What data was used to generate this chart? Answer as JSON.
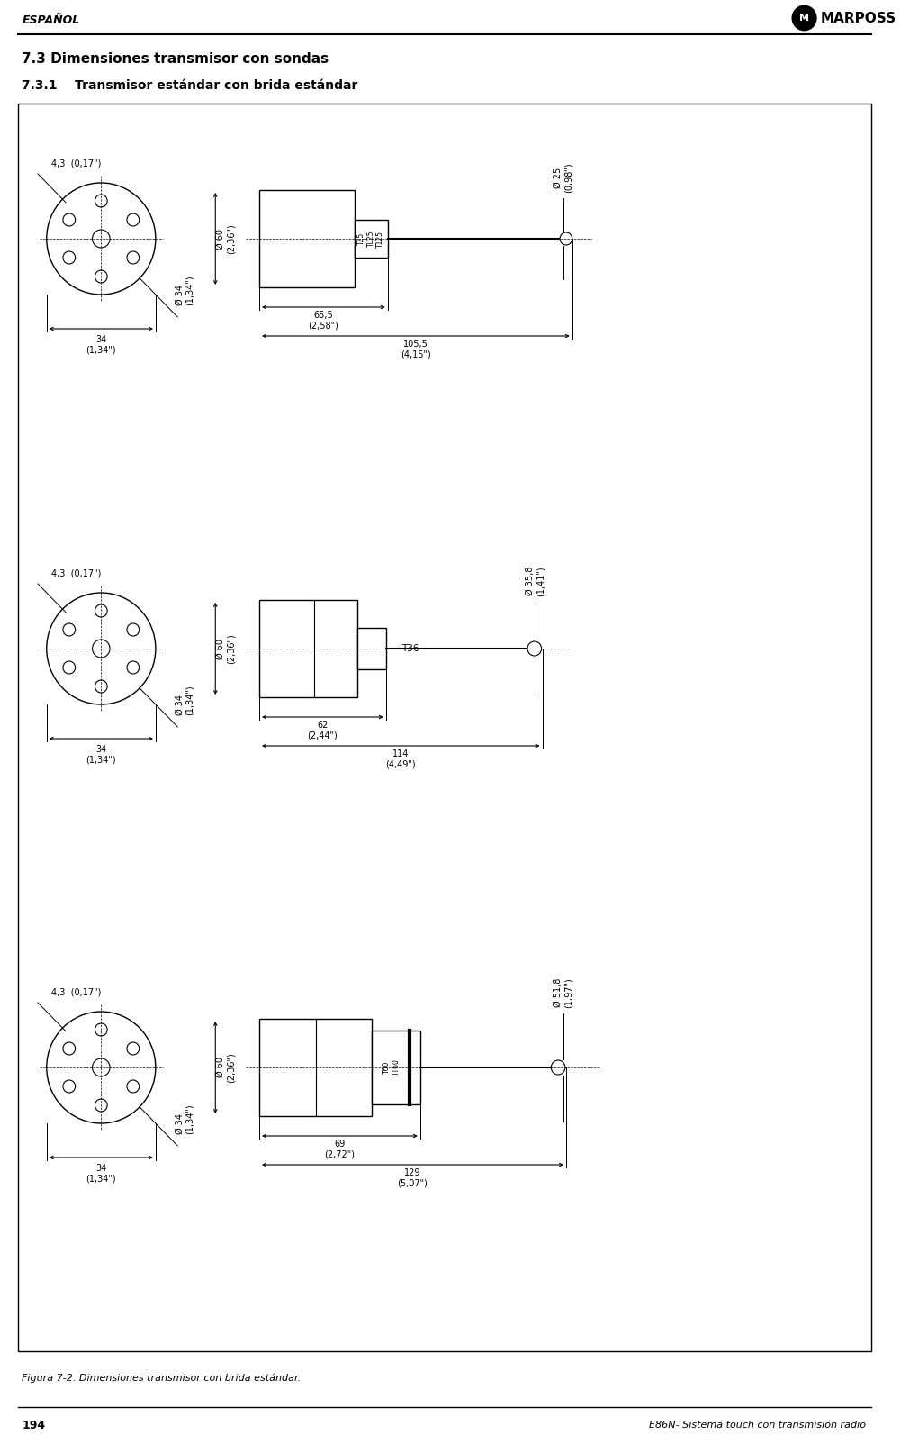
{
  "page_title_left": "ESPAÑOL",
  "page_title_right": "MARPOSS",
  "section_title": "7.3 Dimensiones transmisor con sondas",
  "subsection_title": "7.3.1    Transmisor estándar con brida estándar",
  "caption": "Figura 7-2. Dimensiones transmisor con brida estándar.",
  "page_number": "194",
  "footer_right": "E86N- Sistema touch con transmisión radio",
  "bg_color": "#ffffff",
  "box_color": "#000000"
}
